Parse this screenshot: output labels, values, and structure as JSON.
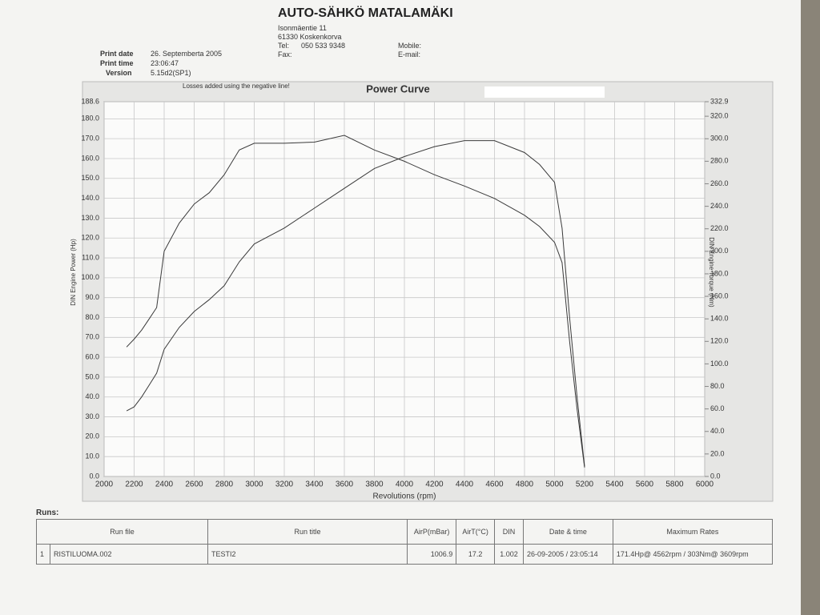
{
  "header": {
    "company": "AUTO-SÄHKÖ MATALAMÄKI",
    "address": "Isonmäentie 11",
    "city": "61330 Koskenkorva",
    "tel_label": "Tel:",
    "tel": "050 533 9348",
    "fax_label": "Fax:",
    "mobile_label": "Mobile:",
    "email_label": "E-mail:"
  },
  "print_info": [
    {
      "label": "Print date",
      "value": "26. Septemberta 2005"
    },
    {
      "label": "Print time",
      "value": "23:06:47"
    },
    {
      "label": "Version",
      "value": "5.15d2(SP1)"
    }
  ],
  "chart_data": {
    "type": "line",
    "title": "Power Curve",
    "note": "Losses added using the negative line!",
    "x_label": "Revolutions (rpm)",
    "y_label": "DIN Engine Power (Hp)",
    "y2_label": "DIN Engine Torque (Nm)",
    "x": [
      2150,
      2200,
      2250,
      2300,
      2350,
      2400,
      2500,
      2600,
      2700,
      2800,
      2900,
      3000,
      3200,
      3400,
      3600,
      3800,
      4000,
      4200,
      4400,
      4600,
      4800,
      4900,
      5000,
      5050,
      5100,
      5150,
      5200
    ],
    "series": [
      {
        "color": "#3a3a3a",
        "values": [
          33,
          35,
          40,
          46,
          52,
          64,
          75,
          83,
          89,
          96,
          108,
          117,
          125,
          135,
          145,
          155,
          161,
          166,
          169,
          169,
          163,
          157,
          148,
          125,
          80,
          40,
          5
        ]
      },
      {
        "color": "#3a3a3a",
        "axis": "y2",
        "values": [
          115,
          122,
          130,
          140,
          150,
          200,
          225,
          242,
          252,
          268,
          290,
          296,
          296,
          297,
          303,
          290,
          280,
          268,
          258,
          247,
          232,
          222,
          208,
          190,
          120,
          60,
          8
        ]
      }
    ],
    "xlim": [
      2000,
      6000
    ],
    "xticks": [
      2000,
      2200,
      2400,
      2600,
      2800,
      3000,
      3200,
      3400,
      3600,
      3800,
      4000,
      4200,
      4400,
      4600,
      4800,
      5000,
      5200,
      5400,
      5600,
      5800,
      6000
    ],
    "ylim": [
      0,
      188.6
    ],
    "yticks": [
      {
        "value": 0,
        "label": "0.0"
      },
      {
        "value": 10,
        "label": "10.0"
      },
      {
        "value": 20,
        "label": "20.0"
      },
      {
        "value": 30,
        "label": "30.0"
      },
      {
        "value": 40,
        "label": "40.0"
      },
      {
        "value": 50,
        "label": "50.0"
      },
      {
        "value": 60,
        "label": "60.0"
      },
      {
        "value": 70,
        "label": "70.0"
      },
      {
        "value": 80,
        "label": "80.0"
      },
      {
        "value": 90,
        "label": "90.0"
      },
      {
        "value": 100,
        "label": "100.0"
      },
      {
        "value": 110,
        "label": "110.0"
      },
      {
        "value": 120,
        "label": "120.0"
      },
      {
        "value": 130,
        "label": "130.0"
      },
      {
        "value": 140,
        "label": "140.0"
      },
      {
        "value": 150,
        "label": "150.0"
      },
      {
        "value": 160,
        "label": "160.0"
      },
      {
        "value": 170,
        "label": "170.0"
      },
      {
        "value": 180,
        "label": "180.0"
      },
      188.6
    ],
    "y2lim": [
      0,
      332.9
    ],
    "y2ticks": [
      {
        "value": 0,
        "label": "0.0"
      },
      {
        "value": 20,
        "label": "20.0"
      },
      {
        "value": 40,
        "label": "40.0"
      },
      {
        "value": 60,
        "label": "60.0"
      },
      {
        "value": 80,
        "label": "80.0"
      },
      {
        "value": 100,
        "label": "100.0"
      },
      {
        "value": 120,
        "label": "120.0"
      },
      {
        "value": 140,
        "label": "140.0"
      },
      {
        "value": 160,
        "label": "160.0"
      },
      {
        "value": 180,
        "label": "180.0"
      },
      {
        "value": 200,
        "label": "200.0"
      },
      {
        "value": 220,
        "label": "220.0"
      },
      {
        "value": 240,
        "label": "240.0"
      },
      {
        "value": 260,
        "label": "260.0"
      },
      {
        "value": 280,
        "label": "280.0"
      },
      {
        "value": 300,
        "label": "300.0"
      },
      {
        "value": 320,
        "label": "320.0"
      },
      332.9
    ],
    "grid": true
  },
  "runs": {
    "label": "Runs:",
    "headers": [
      "Run file",
      "Run title",
      "AirP(mBar)",
      "AirT(°C)",
      "DIN",
      "Date & time",
      "Maximum Rates"
    ],
    "rows": [
      [
        "1",
        "RISTILUOMA.002",
        "TESTI2",
        "1006.9",
        "17.2",
        "1.002",
        "26-09-2005 / 23:05:14",
        "171.4Hp@ 4562rpm / 303Nm@ 3609rpm"
      ]
    ]
  }
}
